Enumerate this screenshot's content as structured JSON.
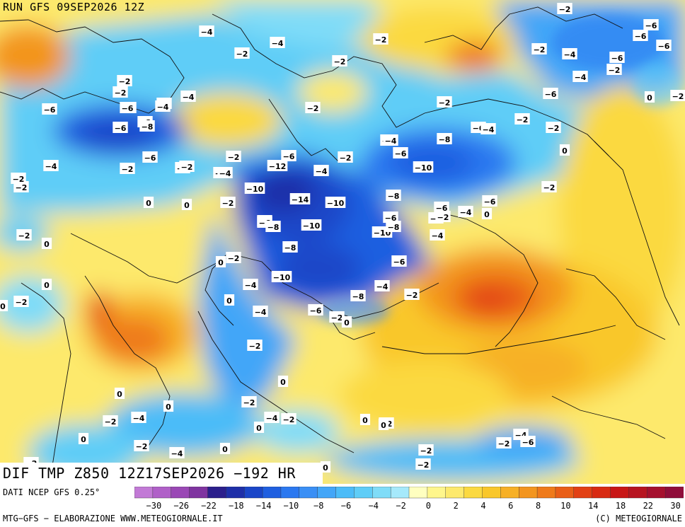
{
  "header": {
    "run_title": "RUN GFS 09SEP2026 12Z"
  },
  "footer": {
    "map_title": "DIF TMP Z850 12Z17SEP2026 −192 HR",
    "source": "DATI NCEP GFS 0.25°",
    "credit_left": "MTG−GFS − ELABORAZIONE WWW.METEOGIORNALE.IT",
    "credit_right": "(C) METEOGIORNALE"
  },
  "color_scale": {
    "ticks": [
      "−30",
      "−26",
      "−22",
      "−18",
      "−14",
      "−10",
      "−8",
      "−6",
      "−4",
      "−2",
      "0",
      "2",
      "4",
      "6",
      "8",
      "10",
      "14",
      "18",
      "22",
      "30"
    ],
    "colors": [
      "#c27ad6",
      "#b060c8",
      "#9a48b5",
      "#7f34a0",
      "#2b1f8c",
      "#1e2fa8",
      "#1a46c8",
      "#1f5fe0",
      "#2b78f0",
      "#3a8ff5",
      "#43a6f8",
      "#4cbcf8",
      "#5fcdf7",
      "#7fdcf8",
      "#a6e9fb",
      "#ffffc0",
      "#fff68c",
      "#fde96c",
      "#fbd940",
      "#f9c72a",
      "#f7b025",
      "#f3951e",
      "#ef7a1a",
      "#e95e17",
      "#e24014",
      "#d82a12",
      "#c81616",
      "#b71420",
      "#a5102e",
      "#8f0d3a"
    ]
  },
  "map_labels": [
    {
      "t": "-2"
    },
    {
      "t": "-4"
    },
    {
      "t": "-4"
    },
    {
      "t": "-2"
    },
    {
      "t": "-2"
    },
    {
      "t": "-2"
    },
    {
      "t": "-8"
    },
    {
      "t": "-6"
    },
    {
      "t": "-6"
    },
    {
      "t": "-2"
    },
    {
      "t": "-4"
    },
    {
      "t": "-6"
    },
    {
      "t": "-2"
    },
    {
      "t": "-4"
    },
    {
      "t": "-4"
    },
    {
      "t": "-2"
    },
    {
      "t": "-6"
    },
    {
      "t": "0"
    },
    {
      "t": "-2"
    },
    {
      "t": "-4"
    },
    {
      "t": "-6"
    },
    {
      "t": "-6"
    },
    {
      "t": "-8"
    },
    {
      "t": "-12"
    },
    {
      "t": "-6"
    },
    {
      "t": "-2"
    },
    {
      "t": "-4"
    },
    {
      "t": "-4"
    },
    {
      "t": "-2"
    },
    {
      "t": "-2"
    },
    {
      "t": "-6"
    },
    {
      "t": "-2"
    },
    {
      "t": "-6"
    },
    {
      "t": "-4"
    },
    {
      "t": "-2"
    },
    {
      "t": "-4"
    },
    {
      "t": "-4"
    },
    {
      "t": "-2"
    },
    {
      "t": "-2"
    },
    {
      "t": "-6"
    },
    {
      "t": "-8"
    },
    {
      "t": "-6"
    },
    {
      "t": "-4"
    },
    {
      "t": "-2"
    },
    {
      "t": "-2"
    },
    {
      "t": "-6"
    },
    {
      "t": "-10"
    },
    {
      "t": "-2"
    },
    {
      "t": "-4"
    },
    {
      "t": "-2"
    },
    {
      "t": "0"
    },
    {
      "t": "0"
    },
    {
      "t": "-2"
    },
    {
      "t": "-10"
    },
    {
      "t": "-14"
    },
    {
      "t": "-10"
    },
    {
      "t": "-8"
    },
    {
      "t": "-6"
    },
    {
      "t": "-4"
    },
    {
      "t": "0"
    },
    {
      "t": "-6"
    },
    {
      "t": "-2"
    },
    {
      "t": "-6"
    },
    {
      "t": "-8"
    },
    {
      "t": "-10"
    },
    {
      "t": "-10"
    },
    {
      "t": "-8"
    },
    {
      "t": "-6"
    },
    {
      "t": "-4"
    },
    {
      "t": "-2"
    },
    {
      "t": "0"
    },
    {
      "t": "-2"
    },
    {
      "t": "-8"
    },
    {
      "t": "-6"
    },
    {
      "t": "0"
    },
    {
      "t": "-10"
    },
    {
      "t": "0"
    },
    {
      "t": "-4"
    },
    {
      "t": "-2"
    },
    {
      "t": "-4"
    },
    {
      "t": "-8"
    },
    {
      "t": "-4"
    },
    {
      "t": "0"
    },
    {
      "t": "-6"
    },
    {
      "t": "-2"
    },
    {
      "t": "0"
    },
    {
      "t": "0"
    },
    {
      "t": "-2"
    },
    {
      "t": "0"
    },
    {
      "t": "0"
    },
    {
      "t": "-2"
    },
    {
      "t": "-4"
    },
    {
      "t": "-2"
    },
    {
      "t": "-2"
    },
    {
      "t": "0"
    },
    {
      "t": "-2"
    },
    {
      "t": "-4"
    },
    {
      "t": "0"
    },
    {
      "t": "-2"
    },
    {
      "t": "-4"
    },
    {
      "t": "0"
    },
    {
      "t": "-2"
    },
    {
      "t": "0"
    },
    {
      "t": "0"
    },
    {
      "t": "-2"
    },
    {
      "t": "0"
    },
    {
      "t": "-2"
    },
    {
      "t": "-4"
    },
    {
      "t": "-6"
    },
    {
      "t": "-2"
    },
    {
      "t": "0"
    },
    {
      "t": "-2"
    },
    {
      "t": "-2"
    },
    {
      "t": "-6"
    },
    {
      "t": "-6"
    },
    {
      "t": "-4"
    },
    {
      "t": "-2"
    },
    {
      "t": "0"
    },
    {
      "t": "-2"
    }
  ]
}
